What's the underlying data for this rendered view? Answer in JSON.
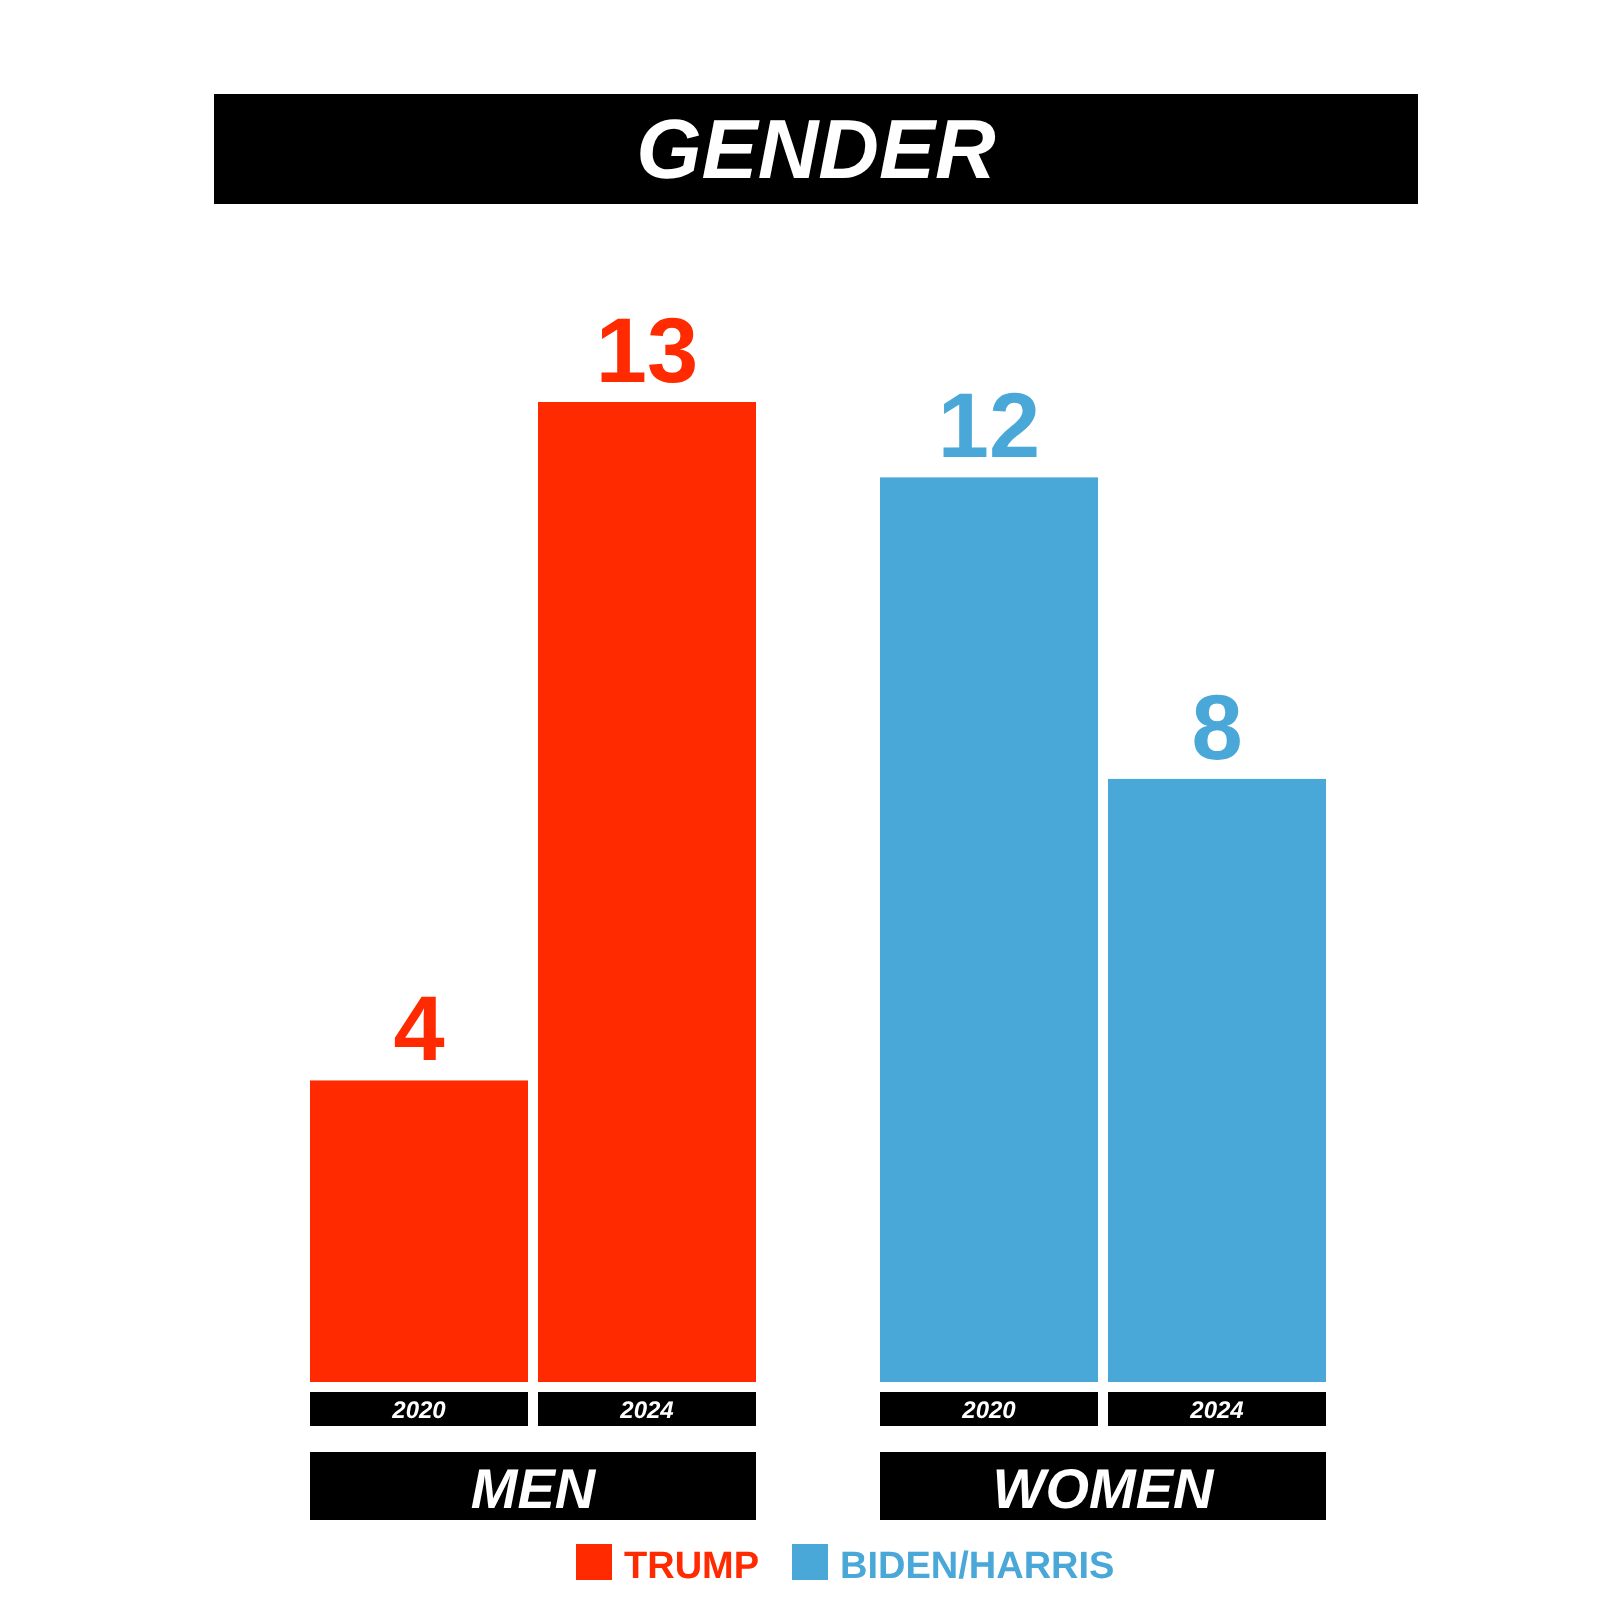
{
  "chart_data": {
    "type": "bar",
    "title": "GENDER",
    "categories": [
      "2020",
      "2024",
      "2020",
      "2024"
    ],
    "series": [
      {
        "name": "TRUMP",
        "color": "#ff2a00",
        "values": [
          4,
          13,
          null,
          null
        ]
      },
      {
        "name": "BIDEN/HARRIS",
        "color": "#4aa8d8",
        "values": [
          null,
          null,
          12,
          8
        ]
      }
    ],
    "annotations": [
      "MEN",
      "WOMEN"
    ],
    "data_labels": true,
    "legend": "bottom"
  }
}
